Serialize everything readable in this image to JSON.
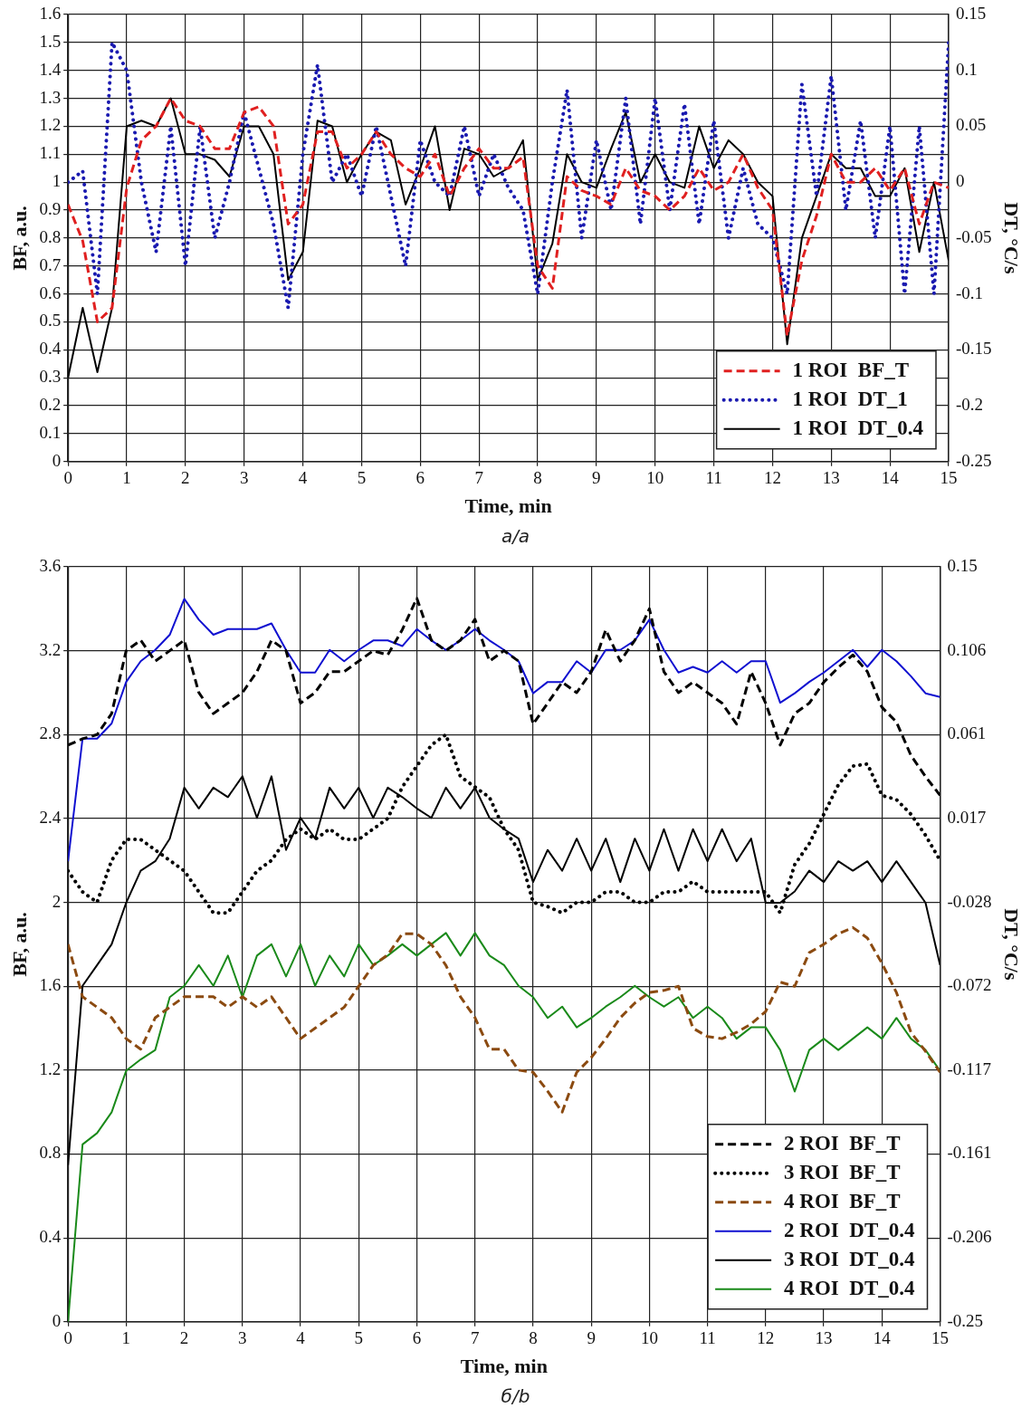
{
  "chart_data": [
    {
      "type": "line",
      "xlabel": "Time, min",
      "ylabel": "BF, a.u.",
      "y2label": "DT, °C/s",
      "annotations": [
        "а/a"
      ],
      "x": [
        0,
        0.25,
        0.5,
        0.75,
        1,
        1.25,
        1.5,
        1.75,
        2,
        2.25,
        2.5,
        2.75,
        3,
        3.25,
        3.5,
        3.75,
        4,
        4.25,
        4.5,
        4.75,
        5,
        5.25,
        5.5,
        5.75,
        6,
        6.25,
        6.5,
        6.75,
        7,
        7.25,
        7.5,
        7.75,
        8,
        8.25,
        8.5,
        8.75,
        9,
        9.25,
        9.5,
        9.75,
        10,
        10.25,
        10.5,
        10.75,
        11,
        11.25,
        11.5,
        11.75,
        12,
        12.25,
        12.5,
        12.75,
        13,
        13.25,
        13.5,
        13.75,
        14,
        14.25,
        14.5,
        14.75,
        15
      ],
      "series": [
        {
          "name": "1 ROI  BF_T",
          "color": "#e02020",
          "line_style": "dashed",
          "values": [
            0.92,
            0.79,
            0.5,
            0.55,
            0.98,
            1.15,
            1.2,
            1.3,
            1.22,
            1.2,
            1.12,
            1.12,
            1.25,
            1.27,
            1.2,
            0.85,
            0.92,
            1.18,
            1.18,
            1.05,
            1.1,
            1.18,
            1.1,
            1.05,
            1.02,
            1.1,
            0.95,
            1.05,
            1.12,
            1.05,
            1.05,
            1.09,
            0.7,
            0.62,
            1.02,
            0.97,
            0.95,
            0.92,
            1.05,
            0.97,
            0.95,
            0.9,
            0.95,
            1.05,
            0.97,
            1.0,
            1.1,
            0.98,
            0.9,
            0.45,
            0.72,
            0.88,
            1.1,
            1.0,
            1.0,
            1.05,
            0.97,
            1.05,
            0.85,
            1.0,
            0.98
          ]
        },
        {
          "name": "1 ROI  DT_1",
          "color": "#1a1ab0",
          "line_style": "dotted",
          "axis": "y2",
          "values": [
            0,
            0.01,
            -0.1,
            0.125,
            0.1,
            0,
            -0.0625,
            0.05,
            -0.075,
            0.05,
            -0.05,
            0,
            0.0625,
            0.0125,
            -0.0375,
            -0.1125,
            0.025,
            0.105,
            0,
            0.025,
            -0.0125,
            0.05,
            -0.0125,
            -0.075,
            0.0375,
            0,
            -0.0125,
            0.05,
            -0.0125,
            0.025,
            -0.005,
            -0.025,
            -0.1,
            0,
            0.0825,
            -0.05,
            0.0375,
            -0.025,
            0.075,
            -0.0375,
            0.075,
            -0.025,
            0.07,
            -0.0375,
            0.055,
            -0.05,
            0.0125,
            -0.0375,
            -0.05,
            -0.1,
            0.0875,
            -0.0125,
            0.095,
            -0.025,
            0.055,
            -0.05,
            0.05,
            -0.1,
            0.05,
            -0.1,
            0.125
          ]
        },
        {
          "name": "1 ROI  DT_0.4",
          "color": "#000000",
          "line_style": "solid",
          "axis": "y2",
          "values": [
            -0.175,
            -0.1125,
            -0.17,
            -0.1125,
            0.05,
            0.055,
            0.05,
            0.075,
            0.025,
            0.025,
            0.02,
            0.005,
            0.05,
            0.05,
            0.025,
            -0.0875,
            -0.0625,
            0.055,
            0.05,
            0,
            0.025,
            0.045,
            0.0375,
            -0.02,
            0.0125,
            0.05,
            -0.025,
            0.03,
            0.025,
            0.005,
            0.0125,
            0.0375,
            -0.0875,
            -0.055,
            0.025,
            0,
            -0.005,
            0.03,
            0.0625,
            0,
            0.025,
            0,
            -0.005,
            0.05,
            0.0125,
            0.0375,
            0.025,
            0,
            -0.0125,
            -0.145,
            -0.05,
            -0.0125,
            0.025,
            0.0125,
            0.0125,
            -0.0125,
            -0.0125,
            0.0125,
            -0.0625,
            0,
            -0.07
          ]
        }
      ],
      "xlim": [
        0,
        15
      ],
      "xticks": [
        0,
        1,
        2,
        3,
        4,
        5,
        6,
        7,
        8,
        9,
        10,
        11,
        12,
        13,
        14,
        15
      ],
      "ylim": [
        0,
        1.6
      ],
      "yticks": [
        0,
        0.1,
        0.2,
        0.3,
        0.4,
        0.5,
        0.6,
        0.7,
        0.8,
        0.9,
        1,
        1.1,
        1.2,
        1.3,
        1.4,
        1.5,
        1.6
      ],
      "y2lim": [
        -0.25,
        0.15
      ],
      "y2ticks": [
        -0.25,
        -0.2,
        -0.15,
        -0.1,
        -0.05,
        0,
        0.05,
        0.1,
        0.15
      ],
      "grid": true,
      "legend": "bottom right",
      "marker": "none"
    },
    {
      "type": "line",
      "xlabel": "Time, min",
      "ylabel": "BF, a.u.",
      "y2label": "DT, °C/s",
      "annotations": [
        "б/b"
      ],
      "x": [
        0,
        0.25,
        0.5,
        0.75,
        1,
        1.25,
        1.5,
        1.75,
        2,
        2.25,
        2.5,
        2.75,
        3,
        3.25,
        3.5,
        3.75,
        4,
        4.25,
        4.5,
        4.75,
        5,
        5.25,
        5.5,
        5.75,
        6,
        6.25,
        6.5,
        6.75,
        7,
        7.25,
        7.5,
        7.75,
        8,
        8.25,
        8.5,
        8.75,
        9,
        9.25,
        9.5,
        9.75,
        10,
        10.25,
        10.5,
        10.75,
        11,
        11.25,
        11.5,
        11.75,
        12,
        12.25,
        12.5,
        12.75,
        13,
        13.25,
        13.5,
        13.75,
        14,
        14.25,
        14.5,
        14.75,
        15
      ],
      "series": [
        {
          "name": "2 ROI  BF_T",
          "color": "#000000",
          "line_style": "dashed",
          "values": [
            2.75,
            2.78,
            2.8,
            2.9,
            3.2,
            3.25,
            3.15,
            3.2,
            3.25,
            3.0,
            2.9,
            2.95,
            3.0,
            3.1,
            3.25,
            3.2,
            2.95,
            3.0,
            3.1,
            3.1,
            3.15,
            3.2,
            3.18,
            3.3,
            3.45,
            3.25,
            3.2,
            3.25,
            3.35,
            3.15,
            3.2,
            3.15,
            2.85,
            2.95,
            3.05,
            3.0,
            3.1,
            3.3,
            3.15,
            3.25,
            3.4,
            3.1,
            3.0,
            3.05,
            3.0,
            2.95,
            2.85,
            3.1,
            2.95,
            2.75,
            2.9,
            2.95,
            3.05,
            3.12,
            3.18,
            3.1,
            2.93,
            2.86,
            2.7,
            2.6,
            2.51
          ]
        },
        {
          "name": "3 ROI  BF_T",
          "color": "#000000",
          "line_style": "dotted",
          "values": [
            2.15,
            2.05,
            2.0,
            2.2,
            2.3,
            2.3,
            2.25,
            2.2,
            2.15,
            2.05,
            1.95,
            1.95,
            2.05,
            2.15,
            2.2,
            2.3,
            2.35,
            2.3,
            2.35,
            2.3,
            2.3,
            2.35,
            2.4,
            2.55,
            2.65,
            2.75,
            2.8,
            2.6,
            2.55,
            2.5,
            2.35,
            2.25,
            2.0,
            1.98,
            1.95,
            2.0,
            2.0,
            2.05,
            2.05,
            2.0,
            2.0,
            2.05,
            2.05,
            2.1,
            2.05,
            2.05,
            2.05,
            2.05,
            2.05,
            1.95,
            2.18,
            2.28,
            2.42,
            2.56,
            2.65,
            2.66,
            2.51,
            2.49,
            2.42,
            2.32,
            2.2
          ]
        },
        {
          "name": "4 ROI  BF_T",
          "color": "#8b4a10",
          "line_style": "dashed",
          "values": [
            1.8,
            1.55,
            1.5,
            1.45,
            1.35,
            1.3,
            1.45,
            1.5,
            1.55,
            1.55,
            1.55,
            1.5,
            1.55,
            1.5,
            1.55,
            1.45,
            1.35,
            1.4,
            1.45,
            1.5,
            1.6,
            1.7,
            1.75,
            1.85,
            1.85,
            1.8,
            1.7,
            1.55,
            1.45,
            1.3,
            1.3,
            1.2,
            1.19,
            1.1,
            1.0,
            1.19,
            1.26,
            1.35,
            1.45,
            1.52,
            1.57,
            1.58,
            1.6,
            1.4,
            1.36,
            1.35,
            1.38,
            1.42,
            1.48,
            1.62,
            1.6,
            1.76,
            1.8,
            1.85,
            1.88,
            1.83,
            1.71,
            1.57,
            1.38,
            1.29,
            1.19
          ]
        },
        {
          "name": "2 ROI  DT_0.4",
          "color": "#1010d0",
          "line_style": "solid",
          "axis": "y2",
          "values": [
            -0.006,
            0.059,
            0.059,
            0.067,
            0.089,
            0.1,
            0.106,
            0.114,
            0.133,
            0.122,
            0.114,
            0.117,
            0.117,
            0.117,
            0.12,
            0.106,
            0.094,
            0.094,
            0.106,
            0.1,
            0.106,
            0.111,
            0.111,
            0.108,
            0.117,
            0.111,
            0.106,
            0.111,
            0.117,
            0.111,
            0.106,
            0.1,
            0.083,
            0.089,
            0.089,
            0.1,
            0.094,
            0.106,
            0.106,
            0.111,
            0.122,
            0.106,
            0.094,
            0.097,
            0.094,
            0.1,
            0.094,
            0.1,
            0.1,
            0.078,
            0.083,
            0.089,
            0.094,
            0.1,
            0.106,
            0.097,
            0.106,
            0.1,
            0.092,
            0.083,
            0.081
          ]
        },
        {
          "name": "3 ROI  DT_0.4",
          "color": "#000000",
          "line_style": "solid",
          "axis": "y2",
          "values": [
            -0.167,
            -0.072,
            -0.061,
            -0.05,
            -0.028,
            -0.011,
            -0.006,
            0.006,
            0.033,
            0.022,
            0.033,
            0.028,
            0.039,
            0.017,
            0.039,
            0,
            0.017,
            0.006,
            0.033,
            0.022,
            0.033,
            0.017,
            0.033,
            0.028,
            0.022,
            0.017,
            0.033,
            0.022,
            0.033,
            0.017,
            0.011,
            0.006,
            -0.017,
            0,
            -0.011,
            0.006,
            -0.011,
            0.006,
            -0.017,
            0.006,
            -0.011,
            0.011,
            -0.011,
            0.011,
            -0.006,
            0.011,
            -0.006,
            0.006,
            -0.028,
            -0.028,
            -0.022,
            -0.011,
            -0.017,
            -0.006,
            -0.011,
            -0.006,
            -0.017,
            -0.006,
            -0.017,
            -0.028,
            -0.061
          ]
        },
        {
          "name": "4 ROI  DT_0.4",
          "color": "#1a8a1a",
          "line_style": "solid",
          "axis": "y2",
          "values": [
            -0.25,
            -0.156,
            -0.15,
            -0.139,
            -0.117,
            -0.111,
            -0.106,
            -0.078,
            -0.072,
            -0.061,
            -0.072,
            -0.056,
            -0.078,
            -0.056,
            -0.05,
            -0.067,
            -0.05,
            -0.072,
            -0.056,
            -0.067,
            -0.05,
            -0.061,
            -0.056,
            -0.05,
            -0.056,
            -0.05,
            -0.044,
            -0.056,
            -0.044,
            -0.056,
            -0.061,
            -0.072,
            -0.078,
            -0.089,
            -0.083,
            -0.094,
            -0.089,
            -0.083,
            -0.078,
            -0.072,
            -0.078,
            -0.083,
            -0.078,
            -0.089,
            -0.083,
            -0.089,
            -0.1,
            -0.094,
            -0.094,
            -0.106,
            -0.128,
            -0.106,
            -0.1,
            -0.106,
            -0.1,
            -0.094,
            -0.1,
            -0.089,
            -0.1,
            -0.106,
            -0.117
          ]
        }
      ],
      "xlim": [
        0,
        15
      ],
      "xticks": [
        0,
        1,
        2,
        3,
        4,
        5,
        6,
        7,
        8,
        9,
        10,
        11,
        12,
        13,
        14,
        15
      ],
      "ylim": [
        0,
        3.6
      ],
      "yticks": [
        0,
        0.4,
        0.8,
        1.2,
        1.6,
        2,
        2.4,
        2.8,
        3.2,
        3.6
      ],
      "y2lim": [
        -0.25,
        0.15
      ],
      "y2ticks": [
        -0.25,
        {
          "value": -0.2056,
          "label": "-0.206"
        },
        {
          "value": -0.1611,
          "label": "-0.161"
        },
        {
          "value": -0.1167,
          "label": "-0.117"
        },
        {
          "value": -0.0722,
          "label": "-0.072"
        },
        {
          "value": -0.0278,
          "label": "-0.028"
        },
        {
          "value": 0.0167,
          "label": "0.017"
        },
        {
          "value": 0.0611,
          "label": "0.061"
        },
        {
          "value": 0.1056,
          "label": "0.106"
        },
        0.15
      ],
      "grid": true,
      "legend": "bottom right",
      "marker": "none"
    }
  ]
}
